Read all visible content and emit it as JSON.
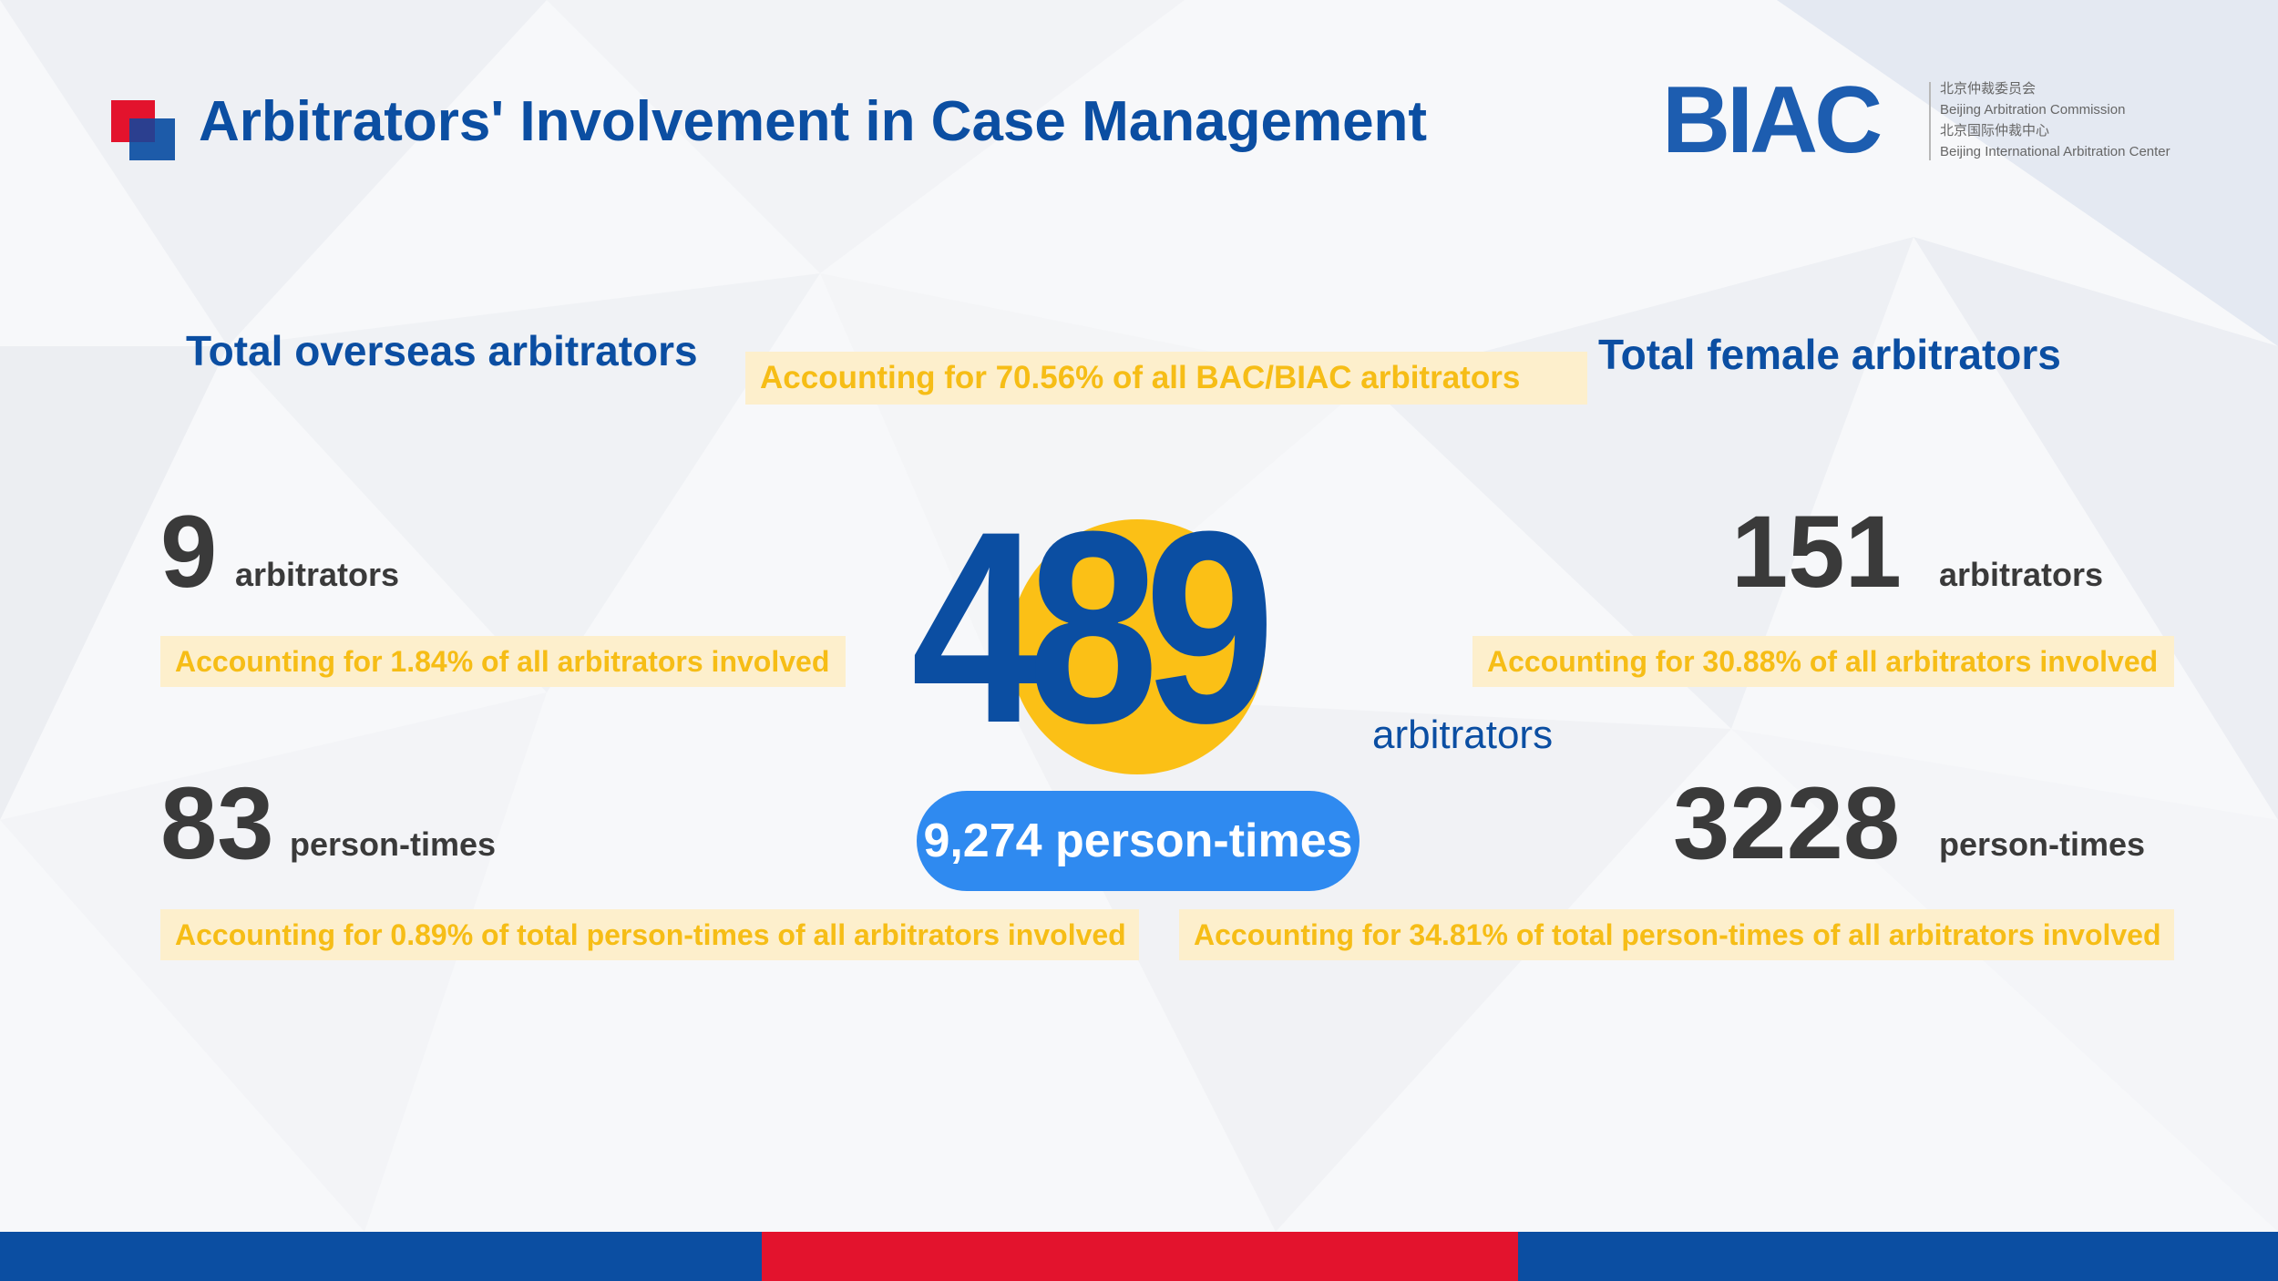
{
  "title": "Arbitrators' Involvement in Case Management",
  "logo": {
    "mark": "BIAC",
    "lines": [
      "北京仲裁委员会",
      "Beijing Arbitration Commission",
      "北京国际仲裁中心",
      "Beijing International Arbitration Center"
    ]
  },
  "center": {
    "number": "489",
    "unit": "arbitrators",
    "share_note": "Accounting for 70.56% of all BAC/BIAC arbitrators",
    "person_times": "9,274 person-times"
  },
  "overseas": {
    "heading": "Total overseas arbitrators",
    "count": "9",
    "count_unit": "arbitrators",
    "count_note": "Accounting for 1.84% of all arbitrators involved",
    "times": "83",
    "times_unit": "person-times",
    "times_note": "Accounting for 0.89% of total person-times of all arbitrators involved"
  },
  "female": {
    "heading": "Total female arbitrators",
    "count": "151",
    "count_unit": "arbitrators",
    "count_note": "Accounting for 30.88% of all arbitrators involved",
    "times": "3228",
    "times_unit": "person-times",
    "times_note": "Accounting for 34.81% of total person-times of all arbitrators involved"
  },
  "colors": {
    "primary_blue": "#0b4ea2",
    "accent_red": "#e3132d",
    "highlight_yellow": "#f6bd16",
    "pill_blue": "#2f8af0"
  }
}
